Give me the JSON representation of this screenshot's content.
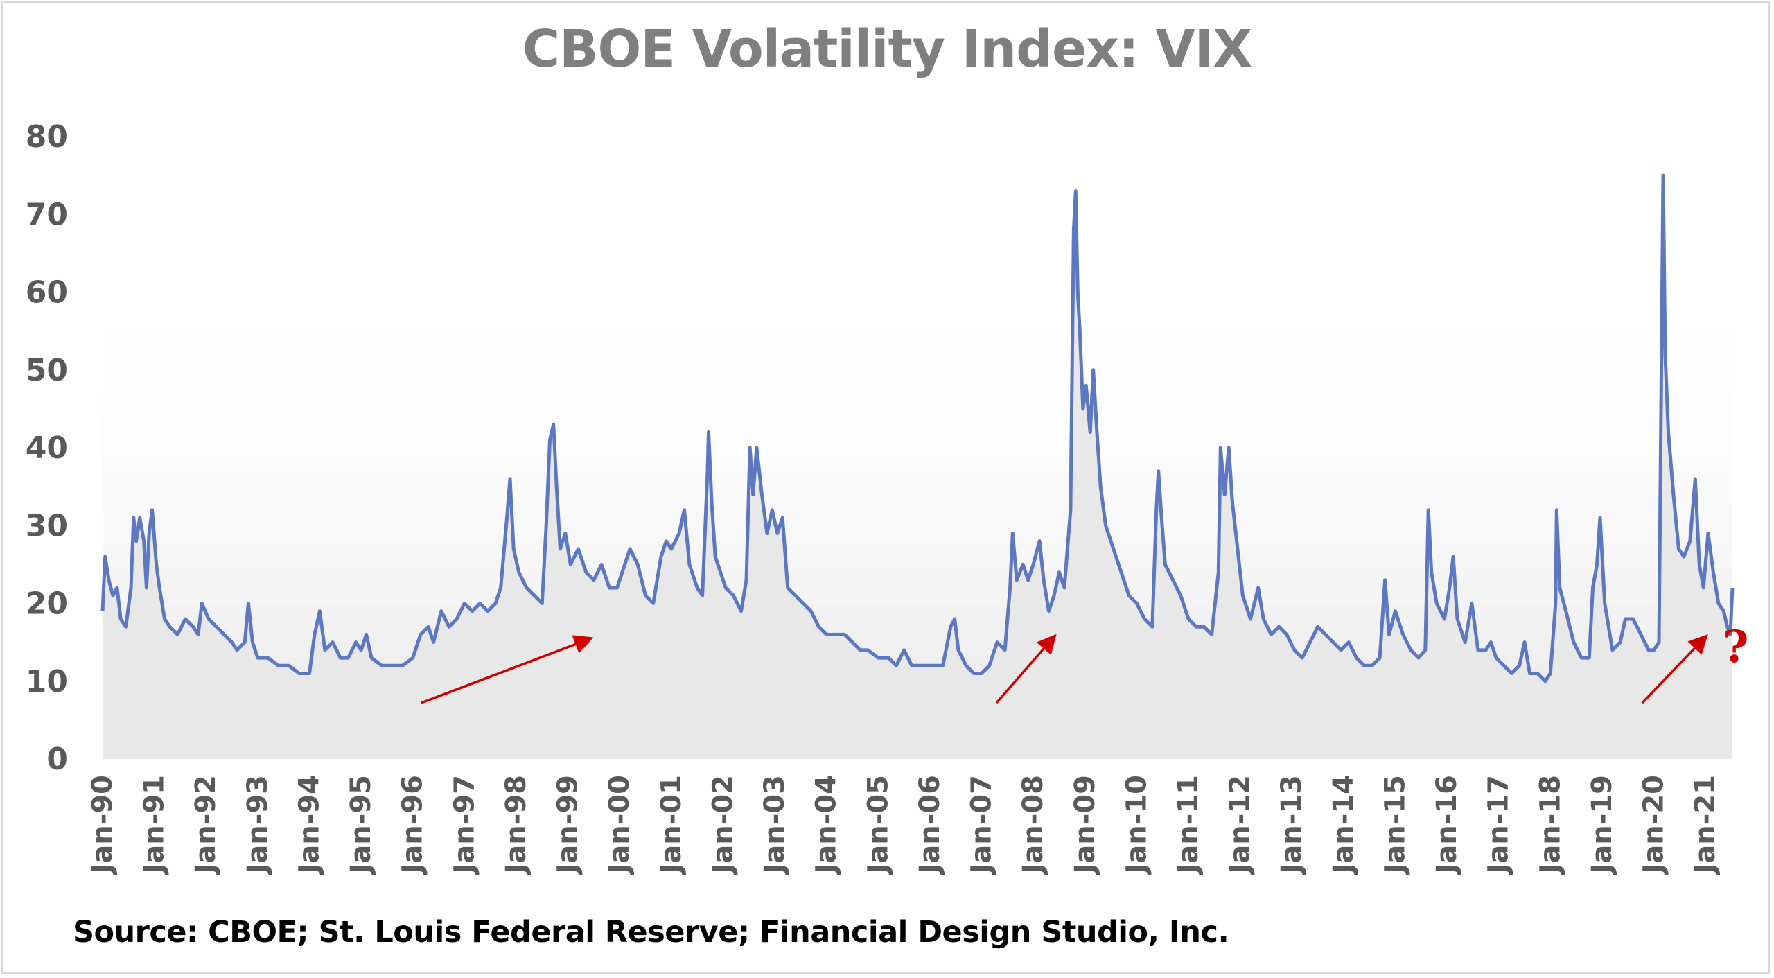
{
  "chart_data": {
    "type": "line",
    "title": "CBOE Volatility Index: VIX",
    "source": "Source: CBOE; St. Louis Federal Reserve; Financial Design Studio, Inc.",
    "xlabel": "",
    "ylabel": "",
    "ylim": [
      0,
      80
    ],
    "yticks": [
      0,
      10,
      20,
      30,
      40,
      50,
      60,
      70,
      80
    ],
    "xticks": [
      "Jan-90",
      "Jan-91",
      "Jan-92",
      "Jan-93",
      "Jan-94",
      "Jan-95",
      "Jan-96",
      "Jan-97",
      "Jan-98",
      "Jan-99",
      "Jan-00",
      "Jan-01",
      "Jan-02",
      "Jan-03",
      "Jan-04",
      "Jan-05",
      "Jan-06",
      "Jan-07",
      "Jan-08",
      "Jan-09",
      "Jan-10",
      "Jan-11",
      "Jan-12",
      "Jan-13",
      "Jan-14",
      "Jan-15",
      "Jan-16",
      "Jan-17",
      "Jan-18",
      "Jan-19",
      "Jan-20",
      "Jan-21"
    ],
    "grid": false,
    "legend": "none",
    "line_color": "#5b78c0",
    "fill_color": "#e8e8e8",
    "annotation_color": "#d00000",
    "annotation_text": "?",
    "series": [
      {
        "points": [
          [
            1990.0,
            19
          ],
          [
            1990.05,
            26
          ],
          [
            1990.12,
            23
          ],
          [
            1990.2,
            21
          ],
          [
            1990.28,
            22
          ],
          [
            1990.35,
            18
          ],
          [
            1990.45,
            17
          ],
          [
            1990.55,
            22
          ],
          [
            1990.6,
            31
          ],
          [
            1990.65,
            28
          ],
          [
            1990.72,
            31
          ],
          [
            1990.8,
            28
          ],
          [
            1990.85,
            22
          ],
          [
            1990.9,
            29
          ],
          [
            1990.96,
            32
          ],
          [
            1991.04,
            25
          ],
          [
            1991.1,
            22
          ],
          [
            1991.2,
            18
          ],
          [
            1991.3,
            17
          ],
          [
            1991.45,
            16
          ],
          [
            1991.6,
            18
          ],
          [
            1991.75,
            17
          ],
          [
            1991.85,
            16
          ],
          [
            1991.92,
            20
          ],
          [
            1992.05,
            18
          ],
          [
            1992.2,
            17
          ],
          [
            1992.35,
            16
          ],
          [
            1992.5,
            15
          ],
          [
            1992.6,
            14
          ],
          [
            1992.75,
            15
          ],
          [
            1992.82,
            20
          ],
          [
            1992.9,
            15
          ],
          [
            1993.0,
            13
          ],
          [
            1993.2,
            13
          ],
          [
            1993.4,
            12
          ],
          [
            1993.6,
            12
          ],
          [
            1993.8,
            11
          ],
          [
            1994.0,
            11
          ],
          [
            1994.1,
            16
          ],
          [
            1994.2,
            19
          ],
          [
            1994.3,
            14
          ],
          [
            1994.45,
            15
          ],
          [
            1994.6,
            13
          ],
          [
            1994.75,
            13
          ],
          [
            1994.9,
            15
          ],
          [
            1995.0,
            14
          ],
          [
            1995.1,
            16
          ],
          [
            1995.2,
            13
          ],
          [
            1995.4,
            12
          ],
          [
            1995.6,
            12
          ],
          [
            1995.8,
            12
          ],
          [
            1996.0,
            13
          ],
          [
            1996.15,
            16
          ],
          [
            1996.3,
            17
          ],
          [
            1996.4,
            15
          ],
          [
            1996.55,
            19
          ],
          [
            1996.7,
            17
          ],
          [
            1996.85,
            18
          ],
          [
            1997.0,
            20
          ],
          [
            1997.15,
            19
          ],
          [
            1997.3,
            20
          ],
          [
            1997.45,
            19
          ],
          [
            1997.6,
            20
          ],
          [
            1997.7,
            22
          ],
          [
            1997.82,
            31
          ],
          [
            1997.88,
            36
          ],
          [
            1997.95,
            27
          ],
          [
            1998.05,
            24
          ],
          [
            1998.2,
            22
          ],
          [
            1998.35,
            21
          ],
          [
            1998.5,
            20
          ],
          [
            1998.58,
            30
          ],
          [
            1998.65,
            41
          ],
          [
            1998.72,
            43
          ],
          [
            1998.78,
            35
          ],
          [
            1998.85,
            27
          ],
          [
            1998.95,
            29
          ],
          [
            1999.05,
            25
          ],
          [
            1999.2,
            27
          ],
          [
            1999.35,
            24
          ],
          [
            1999.5,
            23
          ],
          [
            1999.65,
            25
          ],
          [
            1999.8,
            22
          ],
          [
            1999.95,
            22
          ],
          [
            2000.05,
            24
          ],
          [
            2000.2,
            27
          ],
          [
            2000.35,
            25
          ],
          [
            2000.5,
            21
          ],
          [
            2000.65,
            20
          ],
          [
            2000.8,
            26
          ],
          [
            2000.9,
            28
          ],
          [
            2001.0,
            27
          ],
          [
            2001.15,
            29
          ],
          [
            2001.25,
            32
          ],
          [
            2001.35,
            25
          ],
          [
            2001.5,
            22
          ],
          [
            2001.6,
            21
          ],
          [
            2001.7,
            37
          ],
          [
            2001.72,
            42
          ],
          [
            2001.78,
            33
          ],
          [
            2001.85,
            26
          ],
          [
            2001.95,
            24
          ],
          [
            2002.05,
            22
          ],
          [
            2002.2,
            21
          ],
          [
            2002.35,
            19
          ],
          [
            2002.45,
            23
          ],
          [
            2002.52,
            40
          ],
          [
            2002.58,
            34
          ],
          [
            2002.65,
            40
          ],
          [
            2002.75,
            34
          ],
          [
            2002.85,
            29
          ],
          [
            2002.95,
            32
          ],
          [
            2003.05,
            29
          ],
          [
            2003.15,
            31
          ],
          [
            2003.25,
            22
          ],
          [
            2003.4,
            21
          ],
          [
            2003.55,
            20
          ],
          [
            2003.7,
            19
          ],
          [
            2003.85,
            17
          ],
          [
            2004.0,
            16
          ],
          [
            2004.2,
            16
          ],
          [
            2004.35,
            16
          ],
          [
            2004.5,
            15
          ],
          [
            2004.65,
            14
          ],
          [
            2004.8,
            14
          ],
          [
            2005.0,
            13
          ],
          [
            2005.2,
            13
          ],
          [
            2005.35,
            12
          ],
          [
            2005.5,
            14
          ],
          [
            2005.65,
            12
          ],
          [
            2005.8,
            12
          ],
          [
            2005.95,
            12
          ],
          [
            2006.1,
            12
          ],
          [
            2006.25,
            12
          ],
          [
            2006.4,
            17
          ],
          [
            2006.48,
            18
          ],
          [
            2006.55,
            14
          ],
          [
            2006.7,
            12
          ],
          [
            2006.85,
            11
          ],
          [
            2007.0,
            11
          ],
          [
            2007.15,
            12
          ],
          [
            2007.3,
            15
          ],
          [
            2007.45,
            14
          ],
          [
            2007.55,
            22
          ],
          [
            2007.6,
            29
          ],
          [
            2007.68,
            23
          ],
          [
            2007.8,
            25
          ],
          [
            2007.9,
            23
          ],
          [
            2008.0,
            25
          ],
          [
            2008.12,
            28
          ],
          [
            2008.2,
            23
          ],
          [
            2008.3,
            19
          ],
          [
            2008.4,
            21
          ],
          [
            2008.5,
            24
          ],
          [
            2008.6,
            22
          ],
          [
            2008.72,
            32
          ],
          [
            2008.78,
            68
          ],
          [
            2008.82,
            73
          ],
          [
            2008.86,
            60
          ],
          [
            2008.9,
            55
          ],
          [
            2008.96,
            45
          ],
          [
            2009.02,
            48
          ],
          [
            2009.1,
            42
          ],
          [
            2009.16,
            50
          ],
          [
            2009.22,
            43
          ],
          [
            2009.3,
            35
          ],
          [
            2009.4,
            30
          ],
          [
            2009.55,
            27
          ],
          [
            2009.7,
            24
          ],
          [
            2009.85,
            21
          ],
          [
            2010.0,
            20
          ],
          [
            2010.15,
            18
          ],
          [
            2010.3,
            17
          ],
          [
            2010.38,
            32
          ],
          [
            2010.42,
            37
          ],
          [
            2010.48,
            31
          ],
          [
            2010.55,
            25
          ],
          [
            2010.7,
            23
          ],
          [
            2010.85,
            21
          ],
          [
            2011.0,
            18
          ],
          [
            2011.15,
            17
          ],
          [
            2011.3,
            17
          ],
          [
            2011.45,
            16
          ],
          [
            2011.58,
            24
          ],
          [
            2011.62,
            40
          ],
          [
            2011.7,
            34
          ],
          [
            2011.78,
            40
          ],
          [
            2011.85,
            33
          ],
          [
            2011.95,
            27
          ],
          [
            2012.05,
            21
          ],
          [
            2012.2,
            18
          ],
          [
            2012.35,
            22
          ],
          [
            2012.45,
            18
          ],
          [
            2012.6,
            16
          ],
          [
            2012.75,
            17
          ],
          [
            2012.9,
            16
          ],
          [
            2013.05,
            14
          ],
          [
            2013.2,
            13
          ],
          [
            2013.35,
            15
          ],
          [
            2013.5,
            17
          ],
          [
            2013.65,
            16
          ],
          [
            2013.8,
            15
          ],
          [
            2013.95,
            14
          ],
          [
            2014.1,
            15
          ],
          [
            2014.25,
            13
          ],
          [
            2014.4,
            12
          ],
          [
            2014.55,
            12
          ],
          [
            2014.7,
            13
          ],
          [
            2014.8,
            23
          ],
          [
            2014.88,
            16
          ],
          [
            2015.0,
            19
          ],
          [
            2015.15,
            16
          ],
          [
            2015.3,
            14
          ],
          [
            2015.45,
            13
          ],
          [
            2015.58,
            14
          ],
          [
            2015.64,
            32
          ],
          [
            2015.7,
            24
          ],
          [
            2015.8,
            20
          ],
          [
            2015.95,
            18
          ],
          [
            2016.05,
            22
          ],
          [
            2016.12,
            26
          ],
          [
            2016.2,
            18
          ],
          [
            2016.35,
            15
          ],
          [
            2016.48,
            20
          ],
          [
            2016.6,
            14
          ],
          [
            2016.75,
            14
          ],
          [
            2016.85,
            15
          ],
          [
            2016.95,
            13
          ],
          [
            2017.1,
            12
          ],
          [
            2017.25,
            11
          ],
          [
            2017.4,
            12
          ],
          [
            2017.5,
            15
          ],
          [
            2017.6,
            11
          ],
          [
            2017.75,
            11
          ],
          [
            2017.9,
            10
          ],
          [
            2018.0,
            11
          ],
          [
            2018.1,
            20
          ],
          [
            2018.12,
            32
          ],
          [
            2018.18,
            22
          ],
          [
            2018.3,
            19
          ],
          [
            2018.45,
            15
          ],
          [
            2018.6,
            13
          ],
          [
            2018.75,
            13
          ],
          [
            2018.82,
            22
          ],
          [
            2018.9,
            25
          ],
          [
            2018.96,
            31
          ],
          [
            2019.05,
            20
          ],
          [
            2019.2,
            14
          ],
          [
            2019.35,
            15
          ],
          [
            2019.45,
            18
          ],
          [
            2019.6,
            18
          ],
          [
            2019.75,
            16
          ],
          [
            2019.9,
            14
          ],
          [
            2020.0,
            14
          ],
          [
            2020.1,
            15
          ],
          [
            2020.18,
            75
          ],
          [
            2020.22,
            52
          ],
          [
            2020.28,
            42
          ],
          [
            2020.38,
            34
          ],
          [
            2020.48,
            27
          ],
          [
            2020.58,
            26
          ],
          [
            2020.7,
            28
          ],
          [
            2020.8,
            36
          ],
          [
            2020.88,
            25
          ],
          [
            2020.96,
            22
          ],
          [
            2021.05,
            29
          ],
          [
            2021.15,
            24
          ],
          [
            2021.25,
            20
          ],
          [
            2021.35,
            19
          ],
          [
            2021.42,
            17
          ],
          [
            2021.48,
            16
          ],
          [
            2021.52,
            22
          ]
        ]
      }
    ]
  }
}
